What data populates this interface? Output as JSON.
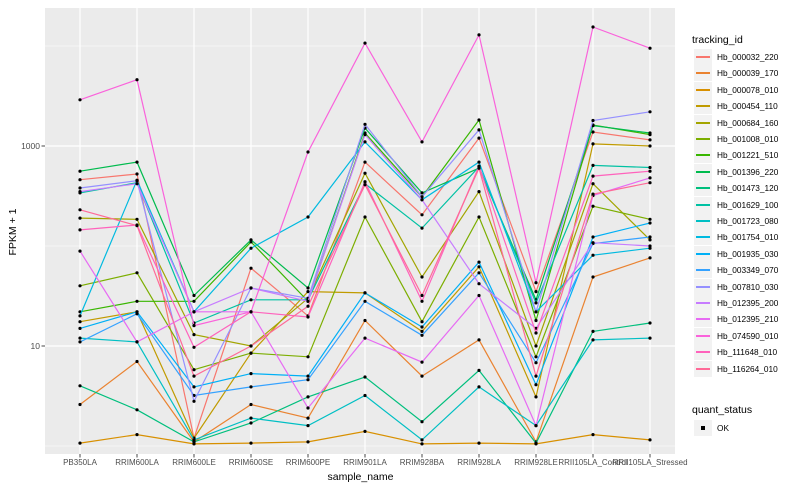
{
  "chart_data": {
    "type": "line",
    "title": "",
    "xlabel": "sample_name",
    "ylabel": "FPKM + 1",
    "y_scale": "log10",
    "legend_title": "tracking_id",
    "quant_legend": {
      "title": "quant_status",
      "items": [
        {
          "label": "OK"
        }
      ]
    },
    "y_ticks": [
      {
        "label": "1000",
        "value": 1000
      },
      {
        "label": "10",
        "value": 10
      }
    ],
    "y_minor_values": [
      10000,
      100,
      1
    ],
    "panel_bg": "#EBEBEB",
    "grid_color": "#FFFFFF",
    "point_color": "#000000",
    "categories": [
      "PB350LA",
      "RRIM600LA",
      "RRIM600LE",
      "RRIM600SE",
      "RRIM600PE",
      "RRIM901LA",
      "RRIM928BA",
      "RRIM928LA",
      "RRIM928LE",
      "RRII105LA_Control",
      "RRII105LA_Stressed"
    ],
    "series": [
      {
        "name": "Hb_000032_220",
        "color": "#F8766D",
        "values": [
          460,
          525,
          1.2,
          60,
          20,
          690,
          205,
          1200,
          35,
          1380,
          1150
        ]
      },
      {
        "name": "Hb_000039_170",
        "color": "#EA8331",
        "values": [
          2.6,
          7,
          1.1,
          2.6,
          1.9,
          18,
          5,
          11.5,
          1.1,
          49,
          76
        ]
      },
      {
        "name": "Hb_000078_010",
        "color": "#D89000",
        "values": [
          1.07,
          1.3,
          1.05,
          1.07,
          1.1,
          1.4,
          1.05,
          1.07,
          1.05,
          1.3,
          1.15
        ]
      },
      {
        "name": "Hb_000454_110",
        "color": "#C09B00",
        "values": [
          17.5,
          22,
          1.2,
          8.5,
          35,
          34,
          14,
          62,
          3.1,
          1050,
          1000
        ]
      },
      {
        "name": "Hb_000684_160",
        "color": "#A3A500",
        "values": [
          190,
          185,
          13,
          10,
          30,
          535,
          49,
          350,
          10,
          420,
          115
        ]
      },
      {
        "name": "Hb_001008_010",
        "color": "#7CAE00",
        "values": [
          40,
          54,
          5.8,
          8.5,
          7.8,
          195,
          17.5,
          195,
          7.8,
          250,
          185
        ]
      },
      {
        "name": "Hb_001221_510",
        "color": "#39B600",
        "values": [
          22,
          28,
          28,
          110,
          28,
          1350,
          310,
          1820,
          18,
          1620,
          1300
        ]
      },
      {
        "name": "Hb_001396_220",
        "color": "#00BB4E",
        "values": [
          560,
          690,
          32,
          115,
          38,
          1510,
          340,
          600,
          29,
          1600,
          1350
        ]
      },
      {
        "name": "Hb_001473_120",
        "color": "#00BF7D",
        "values": [
          4.0,
          2.3,
          1.1,
          1.7,
          3.1,
          4.9,
          1.75,
          5.7,
          1.07,
          14,
          17
        ]
      },
      {
        "name": "Hb_001629_100",
        "color": "#00C1A3",
        "values": [
          340,
          430,
          17,
          29,
          29,
          420,
          151,
          620,
          27,
          640,
          610
        ]
      },
      {
        "name": "Hb_001723_080",
        "color": "#00BFC4",
        "values": [
          12,
          11,
          1.15,
          1.9,
          1.6,
          3.2,
          1.15,
          3.9,
          1.6,
          11.5,
          12
        ]
      },
      {
        "name": "Hb_001754_010",
        "color": "#00BAE0",
        "values": [
          20,
          455,
          22,
          95,
          195,
          1100,
          290,
          690,
          22,
          81,
          95
        ]
      },
      {
        "name": "Hb_001935_030",
        "color": "#00B0F6",
        "values": [
          15,
          22,
          3.9,
          5.3,
          5.0,
          34,
          15.5,
          69,
          4.1,
          123,
          170
        ]
      },
      {
        "name": "Hb_003349_070",
        "color": "#35A2FF",
        "values": [
          11,
          21,
          3.2,
          3.9,
          4.6,
          28,
          12.8,
          54,
          6.8,
          106,
          123
        ]
      },
      {
        "name": "Hb_007810_030",
        "color": "#9590FF",
        "values": [
          380,
          450,
          2.8,
          38,
          30,
          1650,
          310,
          1450,
          22,
          1800,
          2200
        ]
      },
      {
        "name": "Hb_012395_200",
        "color": "#C77CFF",
        "values": [
          350,
          420,
          22,
          38,
          28,
          1300,
          290,
          42,
          15,
          108,
          100
        ]
      },
      {
        "name": "Hb_012395_210",
        "color": "#E76BF3",
        "values": [
          89,
          11,
          22,
          22,
          2.4,
          12,
          6.9,
          32,
          1.6,
          320,
          480
        ]
      },
      {
        "name": "Hb_074590_010",
        "color": "#FA62DB",
        "values": [
          2900,
          4600,
          16,
          22,
          870,
          10700,
          1100,
          12900,
          43,
          15500,
          9500
        ]
      },
      {
        "name": "Hb_111648_010",
        "color": "#FF62BC",
        "values": [
          145,
          162,
          9.7,
          22,
          19.5,
          440,
          28,
          630,
          13.5,
          500,
          560
        ]
      },
      {
        "name": "Hb_116264_010",
        "color": "#FF6A98",
        "values": [
          230,
          160,
          5.0,
          10,
          25,
          410,
          32,
          600,
          5.0,
          330,
          430
        ]
      }
    ]
  }
}
